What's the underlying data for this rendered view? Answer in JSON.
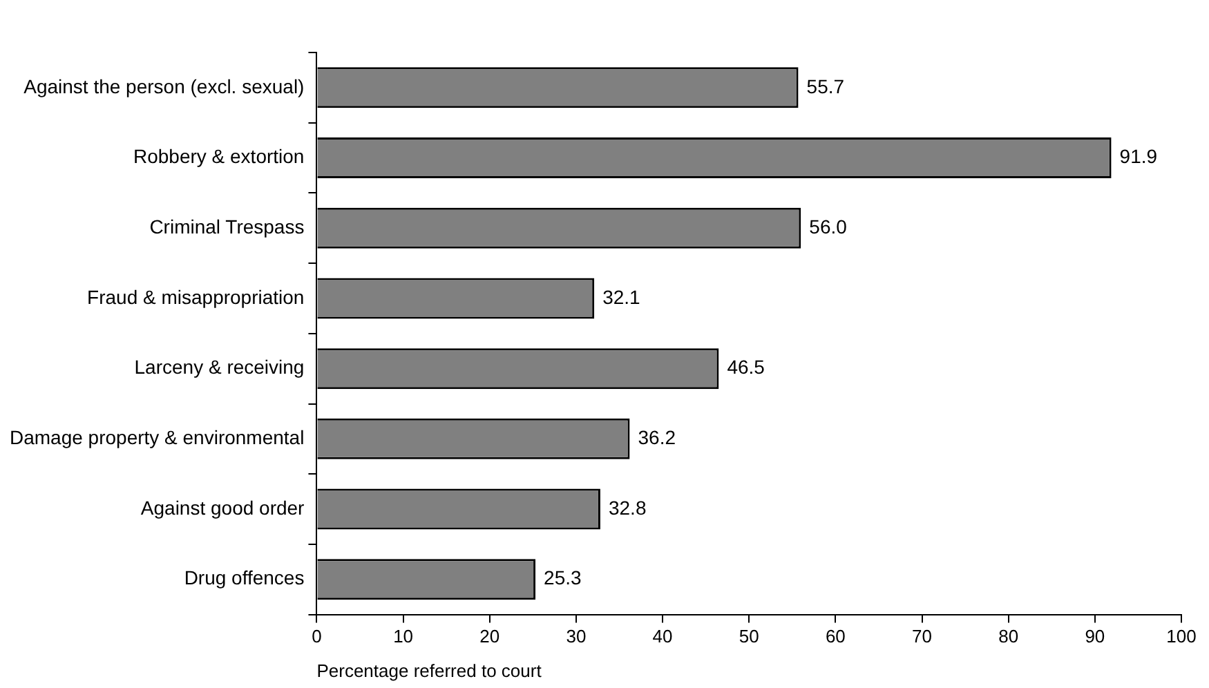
{
  "chart_data": {
    "type": "bar",
    "orientation": "horizontal",
    "xlabel": "Percentage referred to court",
    "categories": [
      "Against the person (excl. sexual)",
      "Robbery & extortion",
      "Criminal Trespass",
      "Fraud & misappropriation",
      "Larceny & receiving",
      "Damage property & environmental",
      "Against good order",
      "Drug offences"
    ],
    "values": [
      55.7,
      91.9,
      56.0,
      32.1,
      46.5,
      36.2,
      32.8,
      25.3
    ],
    "value_labels": [
      "55.7",
      "91.9",
      "56.0",
      "32.1",
      "46.5",
      "36.2",
      "32.8",
      "25.3"
    ],
    "color": "#808080",
    "xlim": [
      0,
      100
    ],
    "xticks": [
      0,
      10,
      20,
      30,
      40,
      50,
      60,
      70,
      80,
      90,
      100
    ],
    "grid": false,
    "legend": false
  }
}
